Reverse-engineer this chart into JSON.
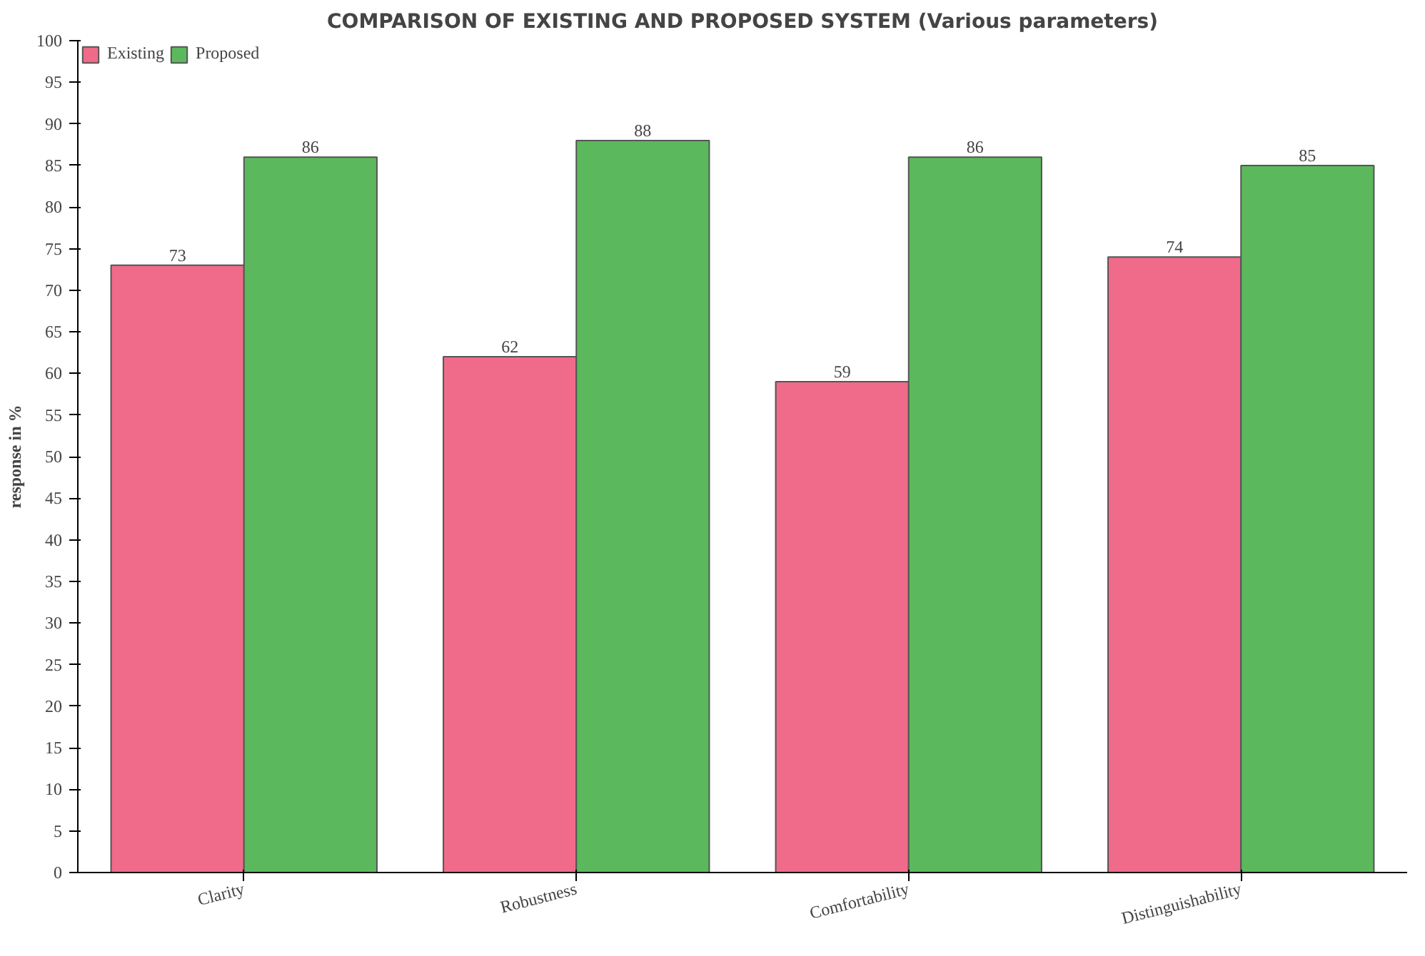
{
  "chart_data": {
    "type": "bar",
    "title": "COMPARISON OF EXISTING AND PROPOSED SYSTEM (Various parameters)",
    "ylabel": "response in %",
    "categories": [
      "Clarity",
      "Robustness",
      "Comfortability",
      "Distinguishability"
    ],
    "series": [
      {
        "name": "Existing",
        "color": "#f06b89",
        "values": [
          73,
          62,
          59,
          74
        ]
      },
      {
        "name": "Proposed",
        "color": "#5cb85c",
        "values": [
          86,
          88,
          86,
          85
        ]
      }
    ],
    "ylim": [
      0,
      100
    ],
    "yticks": [
      0,
      5,
      10,
      15,
      20,
      25,
      30,
      35,
      40,
      45,
      50,
      55,
      60,
      65,
      70,
      75,
      80,
      85,
      90,
      95,
      100
    ],
    "data_labels": true,
    "grid": false,
    "legend": "top left"
  }
}
